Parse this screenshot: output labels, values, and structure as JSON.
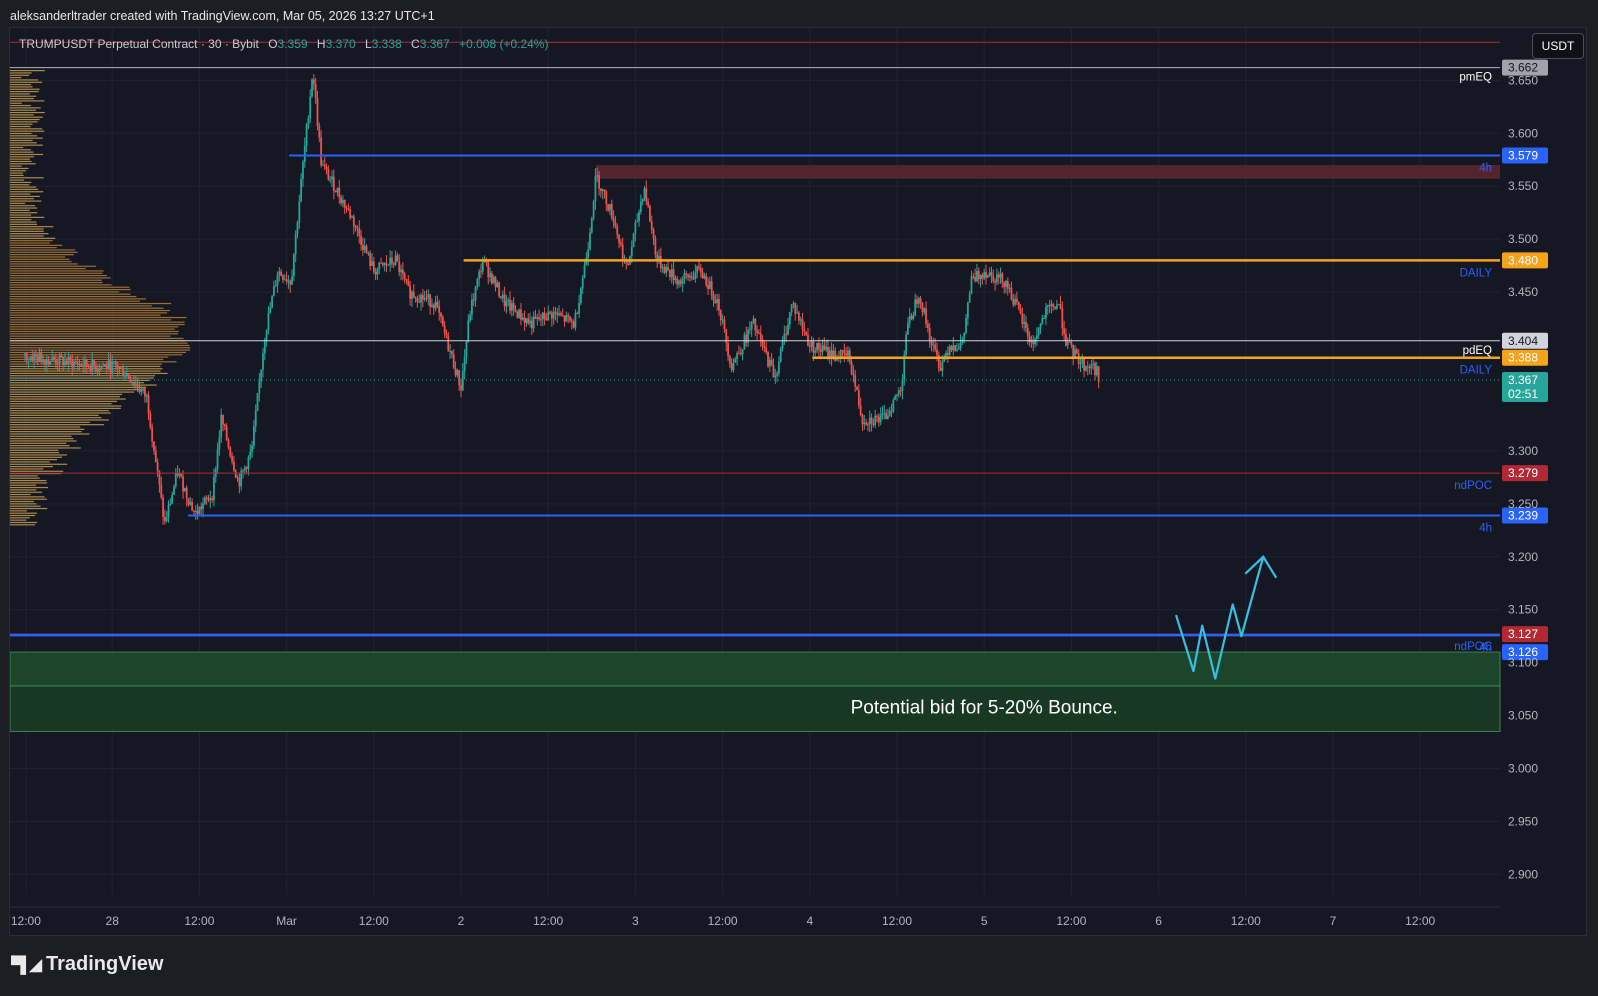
{
  "header": {
    "attribution": "aleksanderltrader created with TradingView.com, Mar 05, 2026 13:27 UTC+1"
  },
  "legend": {
    "symbol": "TRUMPUSDT Perpetual Contract · 30 · Bybit",
    "open_label": "O",
    "open": "3.359",
    "high_label": "H",
    "high": "3.370",
    "low_label": "L",
    "low": "3.338",
    "close_label": "C",
    "close": "3.367",
    "change": "+0.008 (+0.24%)"
  },
  "toolbar": {
    "currency": "USDT"
  },
  "footer": {
    "brand": "TradingView"
  },
  "colors": {
    "up": "#26a69a",
    "down": "#ef5350",
    "blue_level": "#2962ff",
    "orange_level": "#f7a21b",
    "red_level": "#b22833",
    "zone_green": "#1b3a26",
    "zone_red": "#4a1e26",
    "volume_profile": "#e0b25a"
  },
  "chart_data": {
    "type": "candlestick",
    "title": "TRUMPUSDT Perpetual Contract · 30 · Bybit",
    "ylim": [
      2.89,
      3.69
    ],
    "y_ticks": [
      "3.650",
      "3.600",
      "3.550",
      "3.500",
      "3.450",
      "3.300",
      "3.250",
      "3.200",
      "3.150",
      "3.100",
      "3.050",
      "3.000",
      "2.950",
      "2.900"
    ],
    "x_ticks": [
      {
        "label": "12:00",
        "x": 0.01
      },
      {
        "label": "28",
        "x": 1
      },
      {
        "label": "12:00",
        "x": 2
      },
      {
        "label": "Mar",
        "x": 3
      },
      {
        "label": "12:00",
        "x": 4
      },
      {
        "label": "2",
        "x": 5
      },
      {
        "label": "12:00",
        "x": 6
      },
      {
        "label": "3",
        "x": 7
      },
      {
        "label": "12:00",
        "x": 8
      },
      {
        "label": "4",
        "x": 9
      },
      {
        "label": "12:00",
        "x": 10
      },
      {
        "label": "5",
        "x": 11
      },
      {
        "label": "12:00",
        "x": 12
      },
      {
        "label": "6",
        "x": 13
      },
      {
        "label": "12:00",
        "x": 14
      },
      {
        "label": "7",
        "x": 15
      },
      {
        "label": "12:00",
        "x": 16
      }
    ],
    "price_path": [
      [
        0.0,
        3.39
      ],
      [
        0.8,
        3.38
      ],
      [
        1.05,
        3.38
      ],
      [
        1.2,
        3.37
      ],
      [
        1.4,
        3.35
      ],
      [
        1.6,
        3.23
      ],
      [
        1.75,
        3.28
      ],
      [
        1.95,
        3.24
      ],
      [
        2.15,
        3.26
      ],
      [
        2.25,
        3.33
      ],
      [
        2.45,
        3.27
      ],
      [
        2.6,
        3.3
      ],
      [
        2.75,
        3.41
      ],
      [
        2.9,
        3.47
      ],
      [
        3.05,
        3.46
      ],
      [
        3.2,
        3.58
      ],
      [
        3.3,
        3.66
      ],
      [
        3.4,
        3.57
      ],
      [
        3.55,
        3.55
      ],
      [
        3.75,
        3.52
      ],
      [
        4.0,
        3.47
      ],
      [
        4.25,
        3.48
      ],
      [
        4.4,
        3.45
      ],
      [
        4.7,
        3.44
      ],
      [
        5.0,
        3.36
      ],
      [
        5.1,
        3.43
      ],
      [
        5.25,
        3.48
      ],
      [
        5.5,
        3.44
      ],
      [
        5.8,
        3.42
      ],
      [
        6.05,
        3.43
      ],
      [
        6.3,
        3.42
      ],
      [
        6.45,
        3.49
      ],
      [
        6.55,
        3.56
      ],
      [
        6.75,
        3.52
      ],
      [
        6.9,
        3.47
      ],
      [
        7.1,
        3.55
      ],
      [
        7.25,
        3.48
      ],
      [
        7.5,
        3.46
      ],
      [
        7.75,
        3.47
      ],
      [
        7.95,
        3.44
      ],
      [
        8.1,
        3.38
      ],
      [
        8.35,
        3.42
      ],
      [
        8.6,
        3.37
      ],
      [
        8.8,
        3.44
      ],
      [
        9.0,
        3.4
      ],
      [
        9.3,
        3.39
      ],
      [
        9.45,
        3.39
      ],
      [
        9.6,
        3.33
      ],
      [
        9.85,
        3.33
      ],
      [
        10.05,
        3.36
      ],
      [
        10.1,
        3.41
      ],
      [
        10.25,
        3.45
      ],
      [
        10.4,
        3.4
      ],
      [
        10.5,
        3.38
      ],
      [
        10.6,
        3.4
      ],
      [
        10.75,
        3.4
      ],
      [
        10.85,
        3.46
      ],
      [
        11.0,
        3.47
      ],
      [
        11.25,
        3.46
      ],
      [
        11.4,
        3.43
      ],
      [
        11.55,
        3.4
      ],
      [
        11.7,
        3.43
      ],
      [
        11.85,
        3.44
      ],
      [
        11.95,
        3.4
      ],
      [
        12.05,
        3.39
      ],
      [
        12.15,
        3.38
      ],
      [
        12.25,
        3.38
      ],
      [
        12.32,
        3.37
      ]
    ],
    "current_price": "3.367",
    "candle_countdown": "02:51",
    "levels": [
      {
        "price": 3.686,
        "label": "",
        "tag": "",
        "color": "#b22833",
        "width": 1,
        "x_start": 0
      },
      {
        "price": 3.662,
        "label": "pmEQ",
        "tag": "3.662",
        "color": "#b2b5be",
        "width": 1,
        "x_start": 0
      },
      {
        "price": 3.579,
        "label": "4h",
        "tag": "3.579",
        "color": "#2962ff",
        "width": 2,
        "x_start": 3.03
      },
      {
        "price": 3.48,
        "label": "DAILY",
        "tag": "3.480",
        "color": "#f7a21b",
        "width": 2.5,
        "x_start": 5.03
      },
      {
        "price": 3.404,
        "label": "pdEQ",
        "tag": "3.404",
        "color": "#d1d4dc",
        "width": 1,
        "x_start": 0
      },
      {
        "price": 3.388,
        "label": "DAILY",
        "tag": "3.388",
        "color": "#f7a21b",
        "width": 2.5,
        "x_start": 9.03
      },
      {
        "price": 3.279,
        "label": "ndPOC",
        "tag": "3.279",
        "color": "#b22833",
        "width": 1,
        "x_start": 0
      },
      {
        "price": 3.239,
        "label": "4h",
        "tag": "3.239",
        "color": "#2962ff",
        "width": 2,
        "x_start": 1.87
      },
      {
        "price": 3.127,
        "label": "ndPOC",
        "tag": "3.127",
        "color": "#b22833",
        "width": 1,
        "x_start": 0
      },
      {
        "price": 3.126,
        "label": "4h",
        "tag": "3.126",
        "color": "#2962ff",
        "width": 2.5,
        "x_start": 0
      }
    ],
    "zones": [
      {
        "top": 3.57,
        "bottom": 3.557,
        "x_start": 6.55,
        "color": "#5a2530"
      },
      {
        "top": 3.11,
        "bottom": 3.078,
        "x_start": 0,
        "color": "#1e4a2c"
      },
      {
        "top": 3.078,
        "bottom": 3.035,
        "x_start": 0,
        "color": "#1a3c25"
      }
    ],
    "annotation": "Potential bid for 5-20% Bounce.",
    "projection_path": [
      [
        13.2,
        3.145
      ],
      [
        13.4,
        3.092
      ],
      [
        13.5,
        3.135
      ],
      [
        13.65,
        3.085
      ],
      [
        13.85,
        3.155
      ],
      [
        13.95,
        3.125
      ],
      [
        14.2,
        3.2
      ]
    ]
  }
}
